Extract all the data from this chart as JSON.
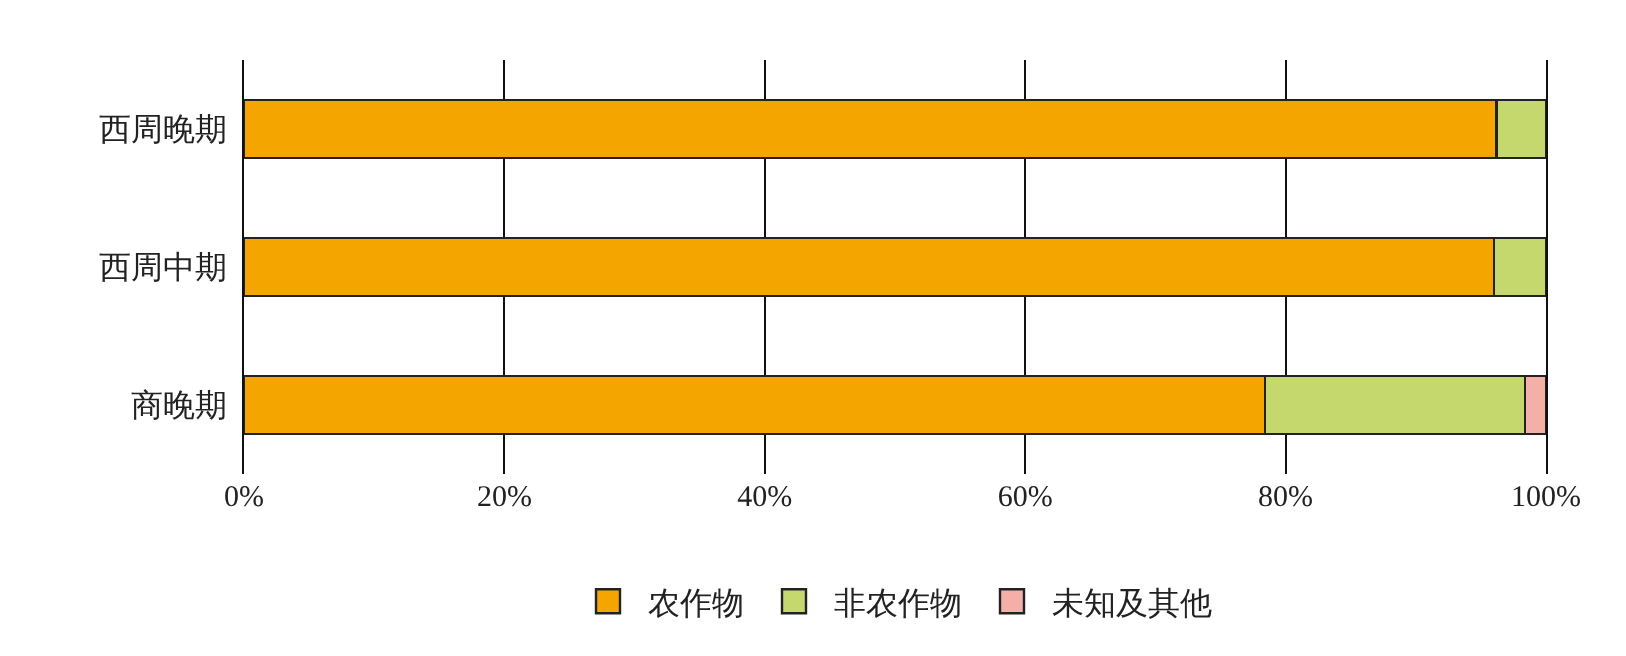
{
  "chart_data": {
    "type": "bar",
    "orientation": "horizontal",
    "stacked": true,
    "categories": [
      "西周晚期",
      "西周中期",
      "商晚期"
    ],
    "series": [
      {
        "name": "农作物",
        "color": "#f5a500",
        "values": [
          96.2,
          96.0,
          78.4
        ]
      },
      {
        "name": "非农作物",
        "color": "#c5d86d",
        "values": [
          3.8,
          4.0,
          20.0
        ]
      },
      {
        "name": "未知及其他",
        "color": "#f4b0a8",
        "values": [
          null,
          null,
          1.6
        ]
      }
    ],
    "xlim": [
      0,
      100
    ],
    "xticks": [
      {
        "value": 0,
        "label": "0%"
      },
      {
        "value": 20,
        "label": "20%"
      },
      {
        "value": 40,
        "label": "40%"
      },
      {
        "value": 60,
        "label": "60%"
      },
      {
        "value": 80,
        "label": "80%"
      },
      {
        "value": 100,
        "label": "100%"
      }
    ],
    "grid": "x",
    "legend": "bottom"
  }
}
